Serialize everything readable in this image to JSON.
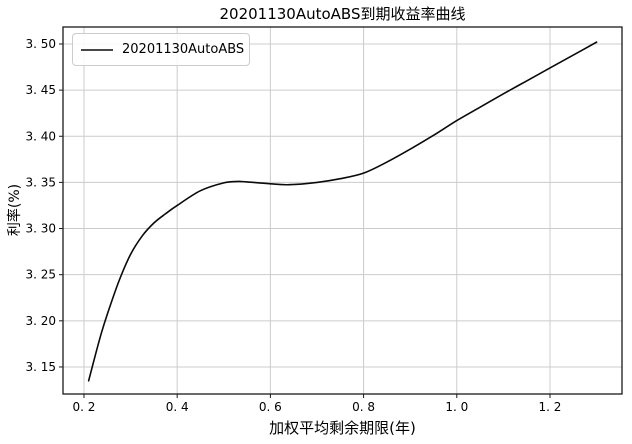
{
  "chart_data": {
    "type": "line",
    "title": "20201130AutoABS到期收益率曲线",
    "xlabel": "加权平均剩余期限(年)",
    "ylabel": "利率(%)",
    "grid": true,
    "legend": {
      "position": "upper left",
      "entries": [
        "20201130AutoABS"
      ]
    },
    "xlim": [
      0.155,
      1.3545
    ],
    "ylim": [
      3.1207,
      3.5184
    ],
    "xticks": {
      "values": [
        0.2,
        0.4,
        0.6,
        0.8,
        1.0,
        1.2
      ],
      "labels": [
        "0. 2",
        "0. 4",
        "0. 6",
        "0. 8",
        "1. 0",
        "1. 2"
      ]
    },
    "yticks": {
      "values": [
        3.15,
        3.2,
        3.25,
        3.3,
        3.35,
        3.4,
        3.45,
        3.5
      ],
      "labels": [
        "3. 15",
        "3. 20",
        "3. 25",
        "3. 30",
        "3. 35",
        "3. 40",
        "3. 45",
        "3. 50"
      ]
    },
    "series": [
      {
        "name": "20201130AutoABS",
        "color": "#0a0a0a",
        "x": [
          0.21,
          0.225,
          0.2375,
          0.25,
          0.275,
          0.3,
          0.325,
          0.35,
          0.375,
          0.4,
          0.45,
          0.5,
          0.53,
          0.55,
          0.6,
          0.64,
          0.7,
          0.75,
          0.8,
          0.85,
          0.9,
          0.95,
          1.0,
          1.05,
          1.1,
          1.15,
          1.2,
          1.25,
          1.3
        ],
        "y": [
          3.135,
          3.164,
          3.187,
          3.207,
          3.243,
          3.272,
          3.292,
          3.306,
          3.316,
          3.325,
          3.341,
          3.3495,
          3.351,
          3.3505,
          3.3485,
          3.3475,
          3.35,
          3.354,
          3.36,
          3.372,
          3.386,
          3.401,
          3.417,
          3.4315,
          3.446,
          3.46,
          3.474,
          3.488,
          3.502
        ]
      }
    ],
    "colors": {
      "grid": "#cccccc",
      "spine": "#1a1a1a",
      "text": "#000000",
      "background": "#ffffff"
    }
  }
}
